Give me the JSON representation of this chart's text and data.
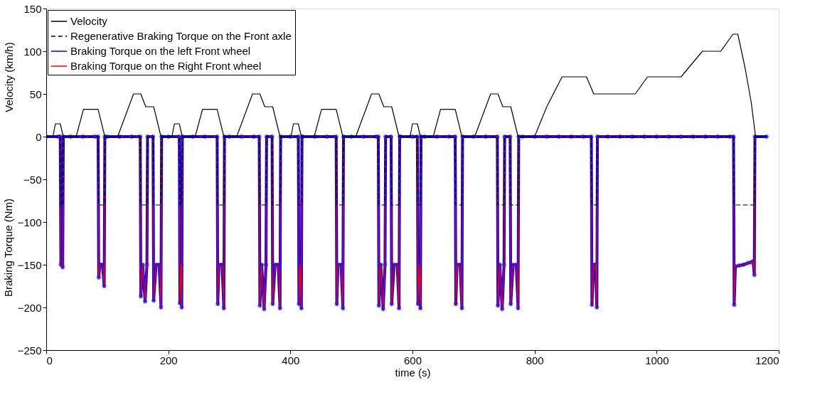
{
  "chart_data": {
    "type": "line",
    "xlabel": "time (s)",
    "ylabel": "Velocity (km/h)",
    "annotations": [
      "Braking Torque (Nm)"
    ],
    "xlim": [
      0,
      1200
    ],
    "xticks": [
      0,
      200,
      400,
      600,
      800,
      1000,
      1200
    ],
    "ylim": [
      -250,
      150
    ],
    "yticks": [
      -250,
      -200,
      -150,
      -100,
      -50,
      0,
      50,
      100,
      150
    ],
    "grid": false,
    "legend": "top left",
    "series": [
      {
        "name": "Velocity",
        "color": "#000000",
        "line_style": "solid",
        "marker": "none",
        "x": [
          0,
          11,
          15,
          23,
          28,
          49,
          61,
          85,
          96,
          117,
          143,
          155,
          163,
          176,
          188,
          206,
          210,
          218,
          223,
          244,
          256,
          280,
          291,
          312,
          338,
          350,
          358,
          371,
          383,
          401,
          405,
          413,
          418,
          439,
          451,
          475,
          486,
          507,
          533,
          545,
          553,
          566,
          578,
          596,
          600,
          608,
          613,
          634,
          646,
          670,
          681,
          702,
          728,
          740,
          748,
          761,
          773,
          800,
          820,
          845,
          885,
          897,
          965,
          985,
          1040,
          1075,
          1105,
          1125,
          1133,
          1145,
          1155,
          1162,
          1180
        ],
        "values": [
          0,
          0,
          15,
          15,
          0,
          0,
          32,
          32,
          0,
          0,
          50,
          50,
          35,
          35,
          0,
          0,
          15,
          15,
          0,
          0,
          32,
          32,
          0,
          0,
          50,
          50,
          35,
          35,
          0,
          0,
          15,
          15,
          0,
          0,
          32,
          32,
          0,
          0,
          50,
          50,
          35,
          35,
          0,
          0,
          15,
          15,
          0,
          0,
          32,
          32,
          0,
          0,
          50,
          50,
          35,
          35,
          0,
          0,
          35,
          70,
          70,
          50,
          50,
          70,
          70,
          100,
          100,
          120,
          120,
          80,
          40,
          0,
          0
        ]
      },
      {
        "name": "Regenerative Braking Torque on the Front axle",
        "color": "#000000",
        "line_style": "dashed",
        "marker": "none",
        "x": [
          0,
          23,
          24,
          27,
          28,
          85,
          86,
          95,
          96,
          154,
          155,
          165,
          166,
          175,
          176,
          188,
          189,
          218,
          219,
          222,
          223,
          280,
          281,
          291,
          292,
          349,
          350,
          360,
          361,
          370,
          371,
          383,
          384,
          413,
          414,
          418,
          419,
          475,
          476,
          486,
          487,
          544,
          545,
          555,
          556,
          565,
          566,
          578,
          579,
          608,
          609,
          613,
          614,
          670,
          671,
          681,
          682,
          739,
          740,
          750,
          751,
          760,
          761,
          773,
          774,
          893,
          894,
          902,
          903,
          1126,
          1127,
          1160,
          1161,
          1180
        ],
        "values": [
          0,
          0,
          -80,
          -80,
          0,
          0,
          -80,
          -80,
          0,
          0,
          -80,
          -80,
          0,
          0,
          -80,
          -80,
          0,
          0,
          -80,
          -80,
          0,
          0,
          -80,
          -80,
          0,
          0,
          -80,
          -80,
          0,
          0,
          -80,
          -80,
          0,
          0,
          -80,
          -80,
          0,
          0,
          -80,
          -80,
          0,
          0,
          -80,
          -80,
          0,
          0,
          -80,
          -80,
          0,
          0,
          -80,
          -80,
          0,
          0,
          -80,
          -80,
          0,
          0,
          -80,
          -80,
          0,
          0,
          -80,
          -80,
          0,
          0,
          -80,
          -80,
          0,
          0,
          -80,
          -80,
          0,
          0
        ]
      },
      {
        "name": "Braking Torque on the left Front wheel",
        "color": "#0000ff",
        "line_style": "solid",
        "marker": "circle",
        "x": [
          0,
          20,
          23,
          24,
          26,
          27,
          28,
          40,
          60,
          80,
          85,
          86,
          88,
          92,
          95,
          96,
          100,
          120,
          140,
          154,
          155,
          158,
          162,
          165,
          166,
          175,
          176,
          180,
          185,
          188,
          189,
          200,
          218,
          219,
          221,
          222,
          223,
          240,
          260,
          280,
          281,
          283,
          288,
          291,
          292,
          300,
          320,
          340,
          349,
          350,
          353,
          357,
          360,
          361,
          370,
          371,
          375,
          380,
          383,
          384,
          400,
          413,
          414,
          416,
          418,
          419,
          420,
          440,
          460,
          475,
          476,
          478,
          483,
          486,
          487,
          500,
          520,
          540,
          544,
          545,
          548,
          552,
          555,
          556,
          565,
          566,
          570,
          575,
          578,
          579,
          580,
          600,
          608,
          609,
          611,
          613,
          614,
          620,
          640,
          660,
          670,
          671,
          673,
          678,
          681,
          682,
          700,
          720,
          739,
          740,
          743,
          747,
          750,
          751,
          760,
          761,
          765,
          770,
          773,
          774,
          780,
          800,
          820,
          840,
          860,
          880,
          893,
          894,
          897,
          900,
          902,
          903,
          920,
          940,
          960,
          980,
          1000,
          1020,
          1040,
          1060,
          1080,
          1100,
          1120,
          1126,
          1127,
          1129,
          1135,
          1142,
          1150,
          1155,
          1158,
          1160,
          1161,
          1180
        ],
        "values": [
          0,
          0,
          0,
          -150,
          -150,
          -153,
          0,
          0,
          0,
          0,
          0,
          -165,
          -150,
          -150,
          -175,
          0,
          0,
          0,
          0,
          0,
          -187,
          -150,
          -193,
          -150,
          0,
          0,
          -192,
          -150,
          -150,
          -200,
          0,
          0,
          0,
          -195,
          -150,
          -200,
          0,
          0,
          0,
          0,
          -196,
          -150,
          -150,
          -201,
          0,
          0,
          0,
          0,
          0,
          -198,
          -150,
          -202,
          -150,
          0,
          0,
          -196,
          -150,
          -150,
          -201,
          0,
          0,
          0,
          -196,
          -150,
          -201,
          0,
          0,
          0,
          0,
          0,
          -196,
          -150,
          -150,
          -201,
          0,
          0,
          0,
          0,
          0,
          -198,
          -150,
          -202,
          -150,
          0,
          0,
          -196,
          -150,
          -150,
          -201,
          0,
          0,
          0,
          0,
          -196,
          -150,
          -201,
          0,
          0,
          0,
          0,
          0,
          -196,
          -150,
          -150,
          -201,
          0,
          0,
          0,
          0,
          -198,
          -150,
          -202,
          -150,
          0,
          0,
          -196,
          -150,
          -150,
          -201,
          0,
          0,
          0,
          0,
          0,
          0,
          0,
          0,
          -197,
          -150,
          -150,
          -200,
          0,
          0,
          0,
          0,
          0,
          0,
          0,
          0,
          0,
          0,
          0,
          0,
          0,
          -197,
          -152,
          -151,
          -150,
          -148,
          -147,
          -146,
          -162,
          0,
          0
        ]
      },
      {
        "name": "Braking Torque on the Right Front wheel",
        "color": "#ff0000",
        "line_style": "solid",
        "marker": "none",
        "x": [
          0,
          20,
          23,
          24,
          26,
          27,
          28,
          40,
          60,
          80,
          85,
          86,
          88,
          92,
          95,
          96,
          100,
          120,
          140,
          154,
          155,
          158,
          162,
          165,
          166,
          175,
          176,
          180,
          185,
          188,
          189,
          200,
          218,
          219,
          221,
          222,
          223,
          240,
          260,
          280,
          281,
          283,
          288,
          291,
          292,
          300,
          320,
          340,
          349,
          350,
          353,
          357,
          360,
          361,
          370,
          371,
          375,
          380,
          383,
          384,
          400,
          413,
          414,
          416,
          418,
          419,
          420,
          440,
          460,
          475,
          476,
          478,
          483,
          486,
          487,
          500,
          520,
          540,
          544,
          545,
          548,
          552,
          555,
          556,
          565,
          566,
          570,
          575,
          578,
          579,
          580,
          600,
          608,
          609,
          611,
          613,
          614,
          620,
          640,
          660,
          670,
          671,
          673,
          678,
          681,
          682,
          700,
          720,
          739,
          740,
          743,
          747,
          750,
          751,
          760,
          761,
          765,
          770,
          773,
          774,
          780,
          800,
          820,
          840,
          860,
          880,
          893,
          894,
          897,
          900,
          902,
          903,
          920,
          940,
          960,
          980,
          1000,
          1020,
          1040,
          1060,
          1080,
          1100,
          1120,
          1126,
          1127,
          1129,
          1135,
          1142,
          1150,
          1155,
          1158,
          1160,
          1161,
          1180
        ],
        "values": [
          0,
          0,
          0,
          -150,
          -150,
          -153,
          0,
          0,
          0,
          0,
          0,
          -165,
          -150,
          -150,
          -175,
          0,
          0,
          0,
          0,
          0,
          -187,
          -150,
          -193,
          -150,
          0,
          0,
          -192,
          -150,
          -150,
          -200,
          0,
          0,
          0,
          -195,
          -150,
          -200,
          0,
          0,
          0,
          0,
          -196,
          -150,
          -150,
          -201,
          0,
          0,
          0,
          0,
          0,
          -198,
          -150,
          -202,
          -150,
          0,
          0,
          -196,
          -150,
          -150,
          -201,
          0,
          0,
          0,
          -196,
          -150,
          -201,
          0,
          0,
          0,
          0,
          0,
          -196,
          -150,
          -150,
          -201,
          0,
          0,
          0,
          0,
          0,
          -198,
          -150,
          -202,
          -150,
          0,
          0,
          -196,
          -150,
          -150,
          -201,
          0,
          0,
          0,
          0,
          -196,
          -150,
          -201,
          0,
          0,
          0,
          0,
          0,
          -196,
          -150,
          -150,
          -201,
          0,
          0,
          0,
          0,
          -198,
          -150,
          -202,
          -150,
          0,
          0,
          -196,
          -150,
          -150,
          -201,
          0,
          0,
          0,
          0,
          0,
          0,
          0,
          0,
          -197,
          -150,
          -150,
          -200,
          0,
          0,
          0,
          0,
          0,
          0,
          0,
          0,
          0,
          0,
          0,
          0,
          0,
          -197,
          -152,
          -151,
          -150,
          -148,
          -147,
          -146,
          -162,
          0,
          0
        ]
      }
    ]
  }
}
